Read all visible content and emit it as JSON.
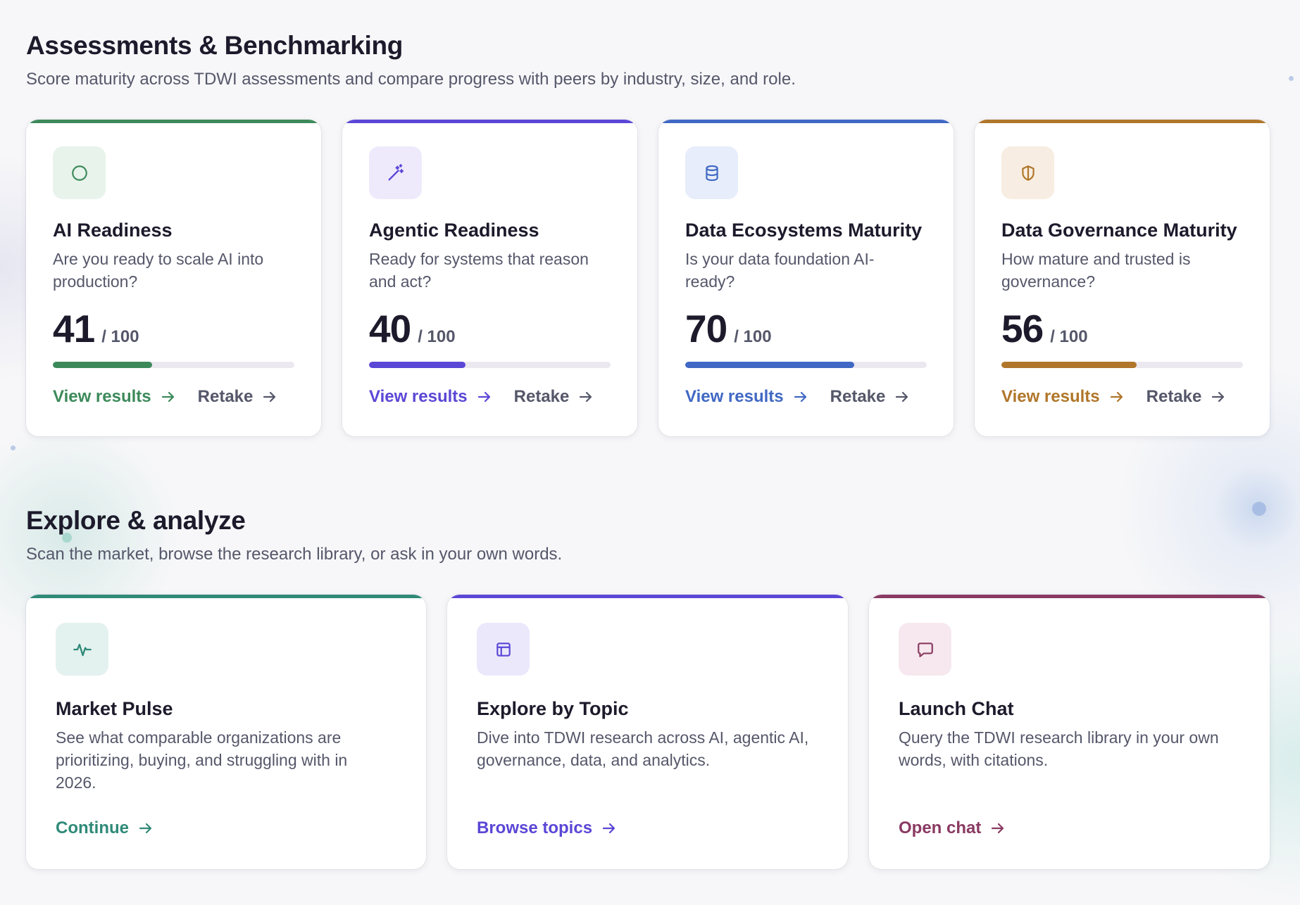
{
  "assessments": {
    "title": "Assessments & Benchmarking",
    "subtitle": "Score maturity across TDWI assessments and compare progress with peers by industry, size, and role.",
    "cards": [
      {
        "title": "AI Readiness",
        "description": "Are you ready to scale AI into production?",
        "score": "41",
        "score_max": "/ 100",
        "progress": 0.41,
        "view_label": "View results",
        "retake_label": "Retake",
        "icon": "circle-icon",
        "accent": "#3c8a5a",
        "icon_bg": "#e8f3ec"
      },
      {
        "title": "Agentic Readiness",
        "description": "Ready for systems that reason and act?",
        "score": "40",
        "score_max": "/ 100",
        "progress": 0.4,
        "view_label": "View results",
        "retake_label": "Retake",
        "icon": "magic-wand-icon",
        "accent": "#5a47d6",
        "icon_bg": "#eeeafc"
      },
      {
        "title": "Data Ecosystems Maturity",
        "description": "Is your data foundation AI-ready?",
        "score": "70",
        "score_max": "/ 100",
        "progress": 0.7,
        "view_label": "View results",
        "retake_label": "Retake",
        "icon": "database-icon",
        "accent": "#4068c4",
        "icon_bg": "#e7edfa"
      },
      {
        "title": "Data Governance Maturity",
        "description": "How mature and trusted is governance?",
        "score": "56",
        "score_max": "/ 100",
        "progress": 0.56,
        "view_label": "View results",
        "retake_label": "Retake",
        "icon": "shield-icon",
        "accent": "#b0762a",
        "icon_bg": "#f8ede2"
      }
    ]
  },
  "explore": {
    "title": "Explore & analyze",
    "subtitle": "Scan the market, browse the research library, or ask in your own words.",
    "cards": [
      {
        "title": "Market Pulse",
        "description": "See what comparable organizations are prioritizing, buying, and struggling with in 2026.",
        "link_label": "Continue",
        "icon": "pulse-icon",
        "accent": "#2f8a78",
        "icon_bg": "#e4f2ef"
      },
      {
        "title": "Explore by Topic",
        "description": "Dive into TDWI research across AI, agentic AI, governance, data, and analytics.",
        "link_label": "Browse topics",
        "icon": "layout-icon",
        "accent": "#5a47d6",
        "icon_bg": "#ebe8fc"
      },
      {
        "title": "Launch Chat",
        "description": "Query the TDWI research library in your own words, with citations.",
        "link_label": "Open chat",
        "icon": "chat-bubble-icon",
        "accent": "#8a3a62",
        "icon_bg": "#f6e8ee"
      }
    ]
  }
}
